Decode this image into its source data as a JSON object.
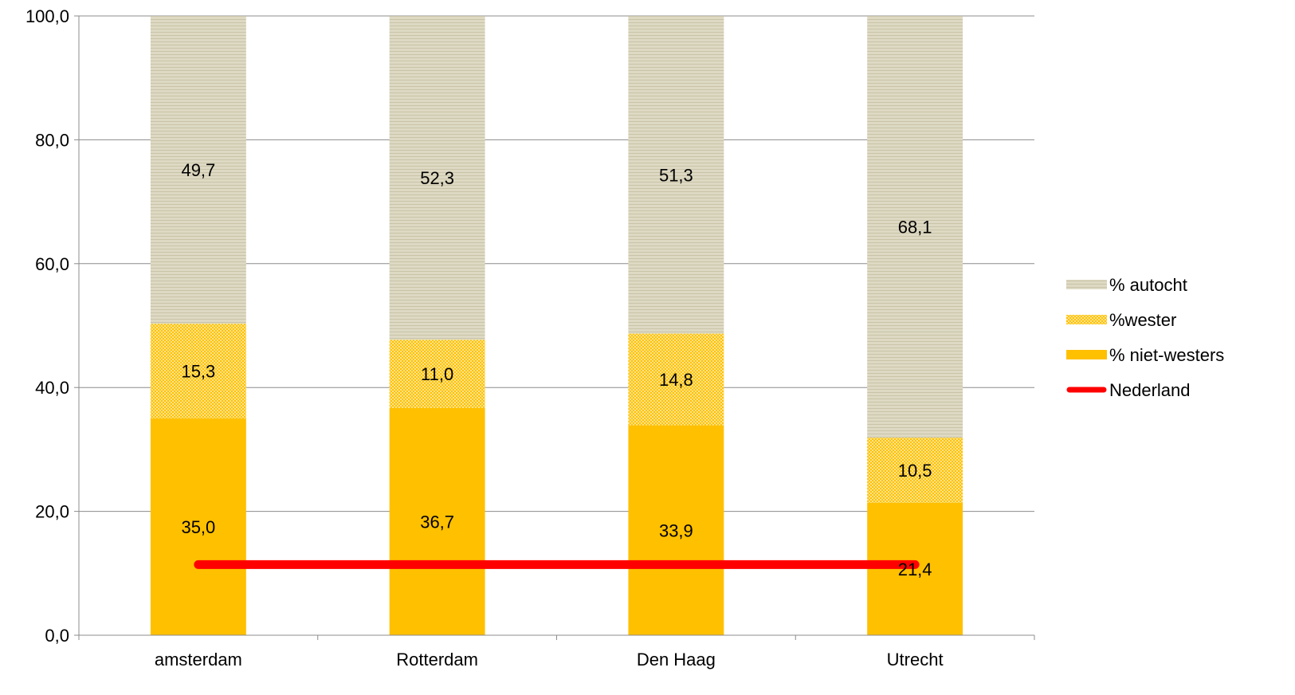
{
  "chart_data": {
    "type": "bar",
    "stacked": true,
    "categories": [
      "amsterdam",
      "Rotterdam",
      "Den Haag",
      "Utrecht"
    ],
    "series": [
      {
        "name": "% niet-westers",
        "values": [
          35.0,
          36.7,
          33.9,
          21.4
        ],
        "labels": [
          "35,0",
          "36,7",
          "33,9",
          "21,4"
        ],
        "color": "#FFC000",
        "pattern": "solid"
      },
      {
        "name": "%wester",
        "values": [
          15.3,
          11.0,
          14.8,
          10.5
        ],
        "labels": [
          "15,3",
          "11,0",
          "14,8",
          "10,5"
        ],
        "color": "#FFC000",
        "pattern": "dotted"
      },
      {
        "name": "% autocht",
        "values": [
          49.7,
          52.3,
          51.3,
          68.1
        ],
        "labels": [
          "49,7",
          "52,3",
          "51,3",
          "68,1"
        ],
        "color": "#DDD9C3",
        "pattern": "horizontal-lines"
      }
    ],
    "line": {
      "name": "Nederland",
      "value": 11.4,
      "color": "#FF0000"
    },
    "ylim": [
      0,
      100
    ],
    "yticks": [
      0,
      20,
      40,
      60,
      80,
      100
    ],
    "ytick_labels": [
      "0,0",
      "20,0",
      "40,0",
      "60,0",
      "80,0",
      "100,0"
    ],
    "grid": true,
    "legend_position": "right",
    "legend_order": [
      "% autocht",
      "%wester",
      "% niet-westers",
      "Nederland"
    ],
    "title": "",
    "xlabel": "",
    "ylabel": ""
  }
}
